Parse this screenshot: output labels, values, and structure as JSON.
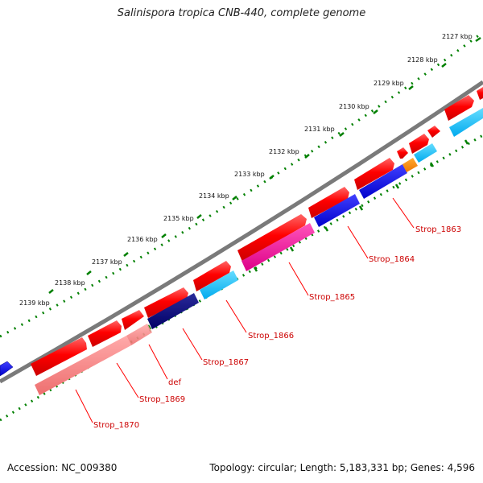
{
  "title": "Salinispora tropica CNB-440, complete genome",
  "accession": "Accession: NC_009380",
  "summary": "Topology: circular; Length: 5,183,331 bp; Genes: 4,596",
  "ticks": [
    "2127 kbp",
    "2128 kbp",
    "2129 kbp",
    "2130 kbp",
    "2131 kbp",
    "2132 kbp",
    "2133 kbp",
    "2134 kbp",
    "2135 kbp",
    "2136 kbp",
    "2137 kbp",
    "2138 kbp",
    "2139 kbp"
  ],
  "gene_labels": [
    "Strop_1863",
    "Strop_1864",
    "Strop_1865",
    "Strop_1866",
    "Strop_1867",
    "def",
    "Strop_1869",
    "Strop_1870"
  ],
  "colors": {
    "forward_gene": "#ff0000",
    "backbone": "#808080",
    "tick_dots": "#008000",
    "label_text": "#cc0000",
    "leader_line": "#ff0000"
  }
}
